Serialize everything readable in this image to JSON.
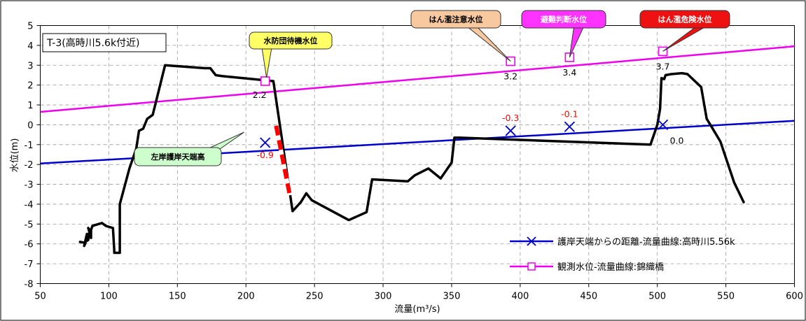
{
  "chart_data": {
    "type": "line",
    "title": "T-3(高時川5.6k付近)",
    "xlabel": "流量(m³/s)",
    "ylabel": "水位(m)",
    "xlim": [
      50,
      600
    ],
    "ylim": [
      -8,
      5
    ],
    "x_ticks": [
      "50",
      "100",
      "150",
      "200",
      "250",
      "300",
      "350",
      "400",
      "450",
      "500",
      "550",
      "600"
    ],
    "y_ticks": [
      "5",
      "4",
      "3",
      "2",
      "1",
      "0",
      "-1",
      "-2",
      "-3",
      "-4",
      "-5",
      "-6",
      "-7",
      "-8"
    ],
    "grid": true,
    "legend_position": "bottom-right",
    "cross_section": {
      "color": "#000000",
      "x": [
        79,
        83,
        82,
        84,
        84,
        85,
        86,
        85,
        87,
        87,
        88,
        90,
        95,
        98,
        103,
        104,
        104,
        108,
        108,
        115,
        120,
        122,
        125,
        128,
        132,
        141,
        170,
        174,
        178,
        183,
        220,
        234,
        240,
        244,
        248,
        275,
        288,
        292,
        318,
        323,
        333,
        342,
        350,
        352,
        356,
        495,
        500,
        502,
        503,
        505,
        506,
        510,
        518,
        522,
        532,
        536,
        540,
        546,
        556,
        563
      ],
      "y": [
        -5.9,
        -5.95,
        -6.1,
        -5.5,
        -5.85,
        -5.8,
        -5.3,
        -5.2,
        -5.7,
        -5.3,
        -5.1,
        -5.05,
        -4.95,
        -5.1,
        -5.2,
        -6.35,
        -6.45,
        -6.45,
        -4.0,
        -2.2,
        -1.2,
        -0.3,
        -0.2,
        0.3,
        0.5,
        3.0,
        2.85,
        2.85,
        2.5,
        2.45,
        2.2,
        -4.35,
        -3.9,
        -3.45,
        -3.8,
        -4.8,
        -4.4,
        -2.75,
        -2.85,
        -2.55,
        -2.2,
        -2.7,
        -1.9,
        -0.65,
        -0.65,
        -1.0,
        0.0,
        0.8,
        2.35,
        2.3,
        2.5,
        2.55,
        2.6,
        2.55,
        1.9,
        0.3,
        -0.15,
        -0.85,
        -2.9,
        -3.9
      ]
    },
    "series": [
      {
        "name": "護岸天端からの距離-流量曲線:高時川5.56k",
        "color": "#0000cc",
        "marker": "x",
        "line": [
          [
            50,
            -1.95
          ],
          [
            600,
            0.2
          ]
        ],
        "points": [
          {
            "x": 214,
            "y": -0.9,
            "label": "-0.9"
          },
          {
            "x": 393,
            "y": -0.3,
            "label": "-0.3"
          },
          {
            "x": 436,
            "y": -0.1,
            "label": "-0.1"
          },
          {
            "x": 504,
            "y": 0.0,
            "label": "0.0"
          }
        ]
      },
      {
        "name": "観測水位-流量曲線:錦織橋",
        "color": "#ee00ee",
        "marker": "square",
        "line": [
          [
            50,
            0.65
          ],
          [
            600,
            3.95
          ]
        ],
        "points": [
          {
            "x": 214,
            "y": 2.2,
            "label": "2.2"
          },
          {
            "x": 393,
            "y": 3.2,
            "label": "3.2"
          },
          {
            "x": 436,
            "y": 3.4,
            "label": "3.4"
          },
          {
            "x": 504,
            "y": 3.7,
            "label": "3.7"
          }
        ]
      }
    ],
    "highlight_segment": {
      "x": [
        222,
        232
      ],
      "y": [
        -0.05,
        -3.55
      ],
      "colors": [
        "#ff0000",
        "#ffffff"
      ]
    },
    "callouts": [
      {
        "text": "水防団待機水位",
        "fill": "#ffff66",
        "stroke": "#333333",
        "text_color": "#000000",
        "target_x": 214,
        "target_y": 2.2
      },
      {
        "text": "はん濫注意水位",
        "fill": "#f8c89e",
        "stroke": "#333333",
        "text_color": "#000000",
        "target_x": 393,
        "target_y": 3.2
      },
      {
        "text": "避難判断水位",
        "fill": "#ff33ff",
        "stroke": "#333333",
        "text_color": "#ffffff",
        "target_x": 436,
        "target_y": 3.4
      },
      {
        "text": "はん濫危険水位",
        "fill": "#ee1111",
        "stroke": "#333333",
        "text_color": "#ffffff",
        "target_x": 504,
        "target_y": 3.7
      },
      {
        "text": "左岸護岸天端高",
        "fill": "#ccffcc",
        "stroke": "#333333",
        "text_color": "#000000",
        "target_x": 214,
        "target_y": -0.9
      }
    ]
  }
}
